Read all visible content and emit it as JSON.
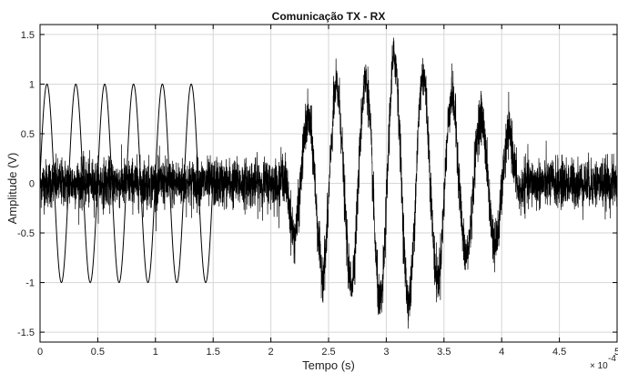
{
  "chart_data": {
    "type": "line",
    "title": "Comunicação TX - RX",
    "xlabel": "Tempo (s)",
    "ylabel": "Amplitude (V)",
    "x_multiplier_label": "× 10",
    "x_multiplier_exponent": "-4",
    "x_scale": 0.0001,
    "xlim": [
      0,
      5
    ],
    "ylim": [
      -1.6,
      1.6
    ],
    "grid": true,
    "x_ticks": [
      0,
      0.5,
      1,
      1.5,
      2,
      2.5,
      3,
      3.5,
      4,
      4.5,
      5
    ],
    "x_tick_labels": [
      "0",
      "0.5",
      "1",
      "1.5",
      "2",
      "2.5",
      "3",
      "3.5",
      "4",
      "4.5",
      "5"
    ],
    "y_ticks": [
      -1.5,
      -1,
      -0.5,
      0,
      0.5,
      1,
      1.5
    ],
    "y_tick_labels": [
      "-1.5",
      "-1",
      "-0.5",
      "0",
      "0.5",
      "1",
      "1.5"
    ],
    "series": [
      {
        "role": "tx-burst",
        "color": "#000000",
        "x_range": [
          0,
          1.5
        ],
        "amplitude": 1.0,
        "period": 0.25,
        "peaks_x": [
          0.06,
          0.31,
          0.56,
          0.81,
          1.06,
          1.31
        ]
      },
      {
        "role": "rx-noise",
        "color": "#000000",
        "x_range": [
          0,
          5
        ],
        "noise_std": 0.12,
        "envelope_peaks_x": [
          2.32,
          2.57,
          2.82,
          3.07,
          3.32,
          3.57,
          3.82,
          4.07
        ],
        "envelope_peak_values": [
          0.63,
          0.96,
          1.02,
          1.28,
          1.1,
          0.88,
          0.68,
          0.5
        ],
        "envelope_troughs_x": [
          2.2,
          2.45,
          2.7,
          2.95,
          3.2,
          3.45,
          3.7,
          3.95
        ],
        "envelope_trough_values": [
          -0.55,
          -0.9,
          -1.0,
          -1.22,
          -1.18,
          -0.95,
          -0.72,
          -0.6
        ]
      }
    ]
  }
}
